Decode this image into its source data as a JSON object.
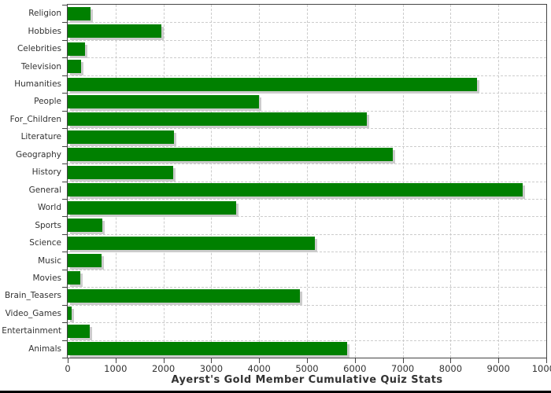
{
  "chart_data": {
    "type": "bar",
    "orientation": "horizontal",
    "title": "Ayerst's Gold Member Cumulative Quiz Stats",
    "categories": [
      "Religion",
      "Hobbies",
      "Celebrities",
      "Television",
      "Humanities",
      "People",
      "For_Children",
      "Literature",
      "Geography",
      "History",
      "General",
      "World",
      "Sports",
      "Science",
      "Music",
      "Movies",
      "Brain_Teasers",
      "Video_Games",
      "Entertainment",
      "Animals"
    ],
    "values": [
      470,
      1950,
      370,
      280,
      8560,
      3990,
      6250,
      2220,
      6790,
      2200,
      9510,
      3520,
      720,
      5160,
      700,
      260,
      4850,
      80,
      460,
      5840
    ],
    "xlim": [
      0,
      10000
    ],
    "x_ticks": [
      0,
      1000,
      2000,
      3000,
      4000,
      5000,
      6000,
      7000,
      8000,
      9000,
      10000
    ],
    "xlabel": "",
    "ylabel": "",
    "grid": true,
    "legend": false,
    "colors": {
      "bar": "#008000",
      "bar_shadow": "#cccccc",
      "gridline": "#cccccc",
      "plot_border": "#444444",
      "text": "#333333",
      "background": "#ffffff",
      "bottom_rule": "#000000"
    }
  }
}
